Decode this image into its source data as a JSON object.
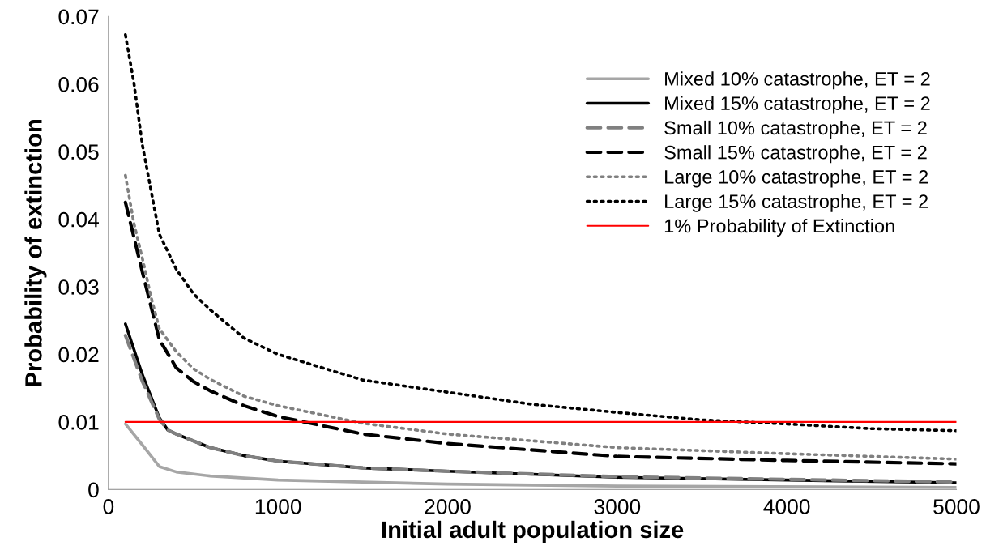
{
  "chart_data": {
    "type": "line",
    "xlabel": "Initial adult population size",
    "ylabel": "Probability of extinction",
    "xlim": [
      0,
      5000
    ],
    "xticks": [
      0,
      1000,
      2000,
      3000,
      4000,
      5000
    ],
    "ylim": [
      0,
      0.07
    ],
    "yticks": [
      0,
      0.01,
      0.02,
      0.03,
      0.04,
      0.05,
      0.06,
      0.07
    ],
    "grid": false,
    "legend": "top right",
    "marker": "none",
    "series": [
      {
        "name": "Mixed 10% catastrophe, ET = 2",
        "color": "#a6a6a6",
        "line_style": "solid",
        "x": [
          100,
          200,
          300,
          400,
          600,
          1000,
          2000,
          3000,
          5000
        ],
        "values": [
          0.0097,
          0.0066,
          0.0034,
          0.0026,
          0.002,
          0.0014,
          0.0008,
          0.0005,
          0.0003
        ]
      },
      {
        "name": "Mixed 15% catastrophe, ET = 2",
        "color": "#000000",
        "line_style": "solid",
        "x": [
          100,
          200,
          300,
          350,
          400,
          500,
          600,
          800,
          1000,
          1500,
          2000,
          3000,
          5000
        ],
        "values": [
          0.0245,
          0.017,
          0.0106,
          0.0088,
          0.0082,
          0.0072,
          0.0062,
          0.005,
          0.0042,
          0.0032,
          0.0027,
          0.0018,
          0.001
        ]
      },
      {
        "name": "Small 10% catastrophe, ET = 2",
        "color": "#808080",
        "line_style": "dashed",
        "x": [
          100,
          200,
          300,
          350,
          400,
          500,
          600,
          800,
          1000,
          1500,
          2000,
          3000,
          5000
        ],
        "values": [
          0.0228,
          0.016,
          0.0104,
          0.0088,
          0.0082,
          0.0072,
          0.0062,
          0.005,
          0.0042,
          0.0032,
          0.0027,
          0.0019,
          0.0011
        ]
      },
      {
        "name": "Small 15% catastrophe, ET = 2",
        "color": "#000000",
        "line_style": "dashed",
        "x": [
          100,
          200,
          300,
          400,
          500,
          600,
          800,
          1000,
          1500,
          2000,
          3000,
          4000,
          5000
        ],
        "values": [
          0.0425,
          0.0322,
          0.0222,
          0.018,
          0.016,
          0.0146,
          0.0124,
          0.0108,
          0.0082,
          0.0068,
          0.0049,
          0.0043,
          0.0038
        ]
      },
      {
        "name": "Large 10% catastrophe, ET = 2",
        "color": "#808080",
        "line_style": "dotted",
        "x": [
          100,
          150,
          200,
          250,
          300,
          400,
          500,
          600,
          800,
          1000,
          1500,
          2000,
          3000,
          4000,
          5000
        ],
        "values": [
          0.0465,
          0.0394,
          0.0342,
          0.0286,
          0.0238,
          0.0204,
          0.0179,
          0.0163,
          0.0138,
          0.0124,
          0.0098,
          0.0082,
          0.0062,
          0.0053,
          0.0045
        ]
      },
      {
        "name": "Large 15% catastrophe, ET = 2",
        "color": "#000000",
        "line_style": "dotted",
        "x": [
          100,
          150,
          200,
          300,
          400,
          500,
          600,
          800,
          1000,
          1500,
          2000,
          2500,
          3000,
          3500,
          4000,
          4500,
          5000
        ],
        "values": [
          0.0673,
          0.0602,
          0.051,
          0.0378,
          0.0326,
          0.029,
          0.0266,
          0.0224,
          0.02,
          0.0162,
          0.0144,
          0.0126,
          0.0114,
          0.0103,
          0.0097,
          0.009,
          0.0087
        ]
      },
      {
        "name": "1% Probability of Extinction",
        "color": "#ff0000",
        "line_style": "solid",
        "x": [
          100,
          5000
        ],
        "values": [
          0.01,
          0.01
        ]
      }
    ]
  }
}
